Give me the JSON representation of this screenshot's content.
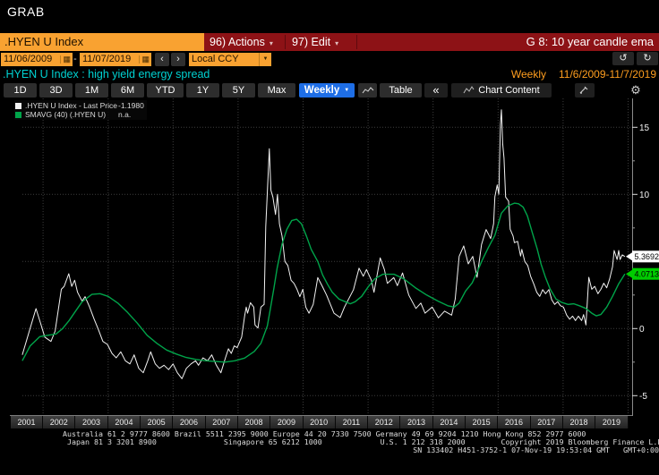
{
  "window": {
    "grab_label": "GRAB"
  },
  "topbar": {
    "ticker": ".HYEN U Index",
    "actions_label": "96) Actions",
    "edit_label": "97) Edit",
    "function_title": "G 8: 10 year candle ema"
  },
  "datebar": {
    "date_from": "11/06/2009",
    "separator": "-",
    "date_to": "11/07/2019",
    "currency": "Local CCY"
  },
  "titlebar": {
    "subtitle": ".HYEN U Index : high yield energy spread",
    "period_label": "Weekly",
    "range_label": "11/6/2009-11/7/2019"
  },
  "toolbar": {
    "ranges": [
      "1D",
      "3D",
      "1M",
      "6M",
      "YTD",
      "1Y",
      "5Y",
      "Max"
    ],
    "interval": "Weekly",
    "table_label": "Table",
    "collapse_label": "«",
    "chart_content_label": "Chart Content"
  },
  "icons": {
    "caret_down": "▼",
    "caret_down_small": "▾",
    "chevron_left": "‹",
    "chevron_right": "›",
    "undo": "↺",
    "redo": "↻",
    "gear": "⚙",
    "calendar": "▦"
  },
  "legend": {
    "items": [
      {
        "swatch": "#f2f2f2",
        "label": ".HYEN U Index - Last Price",
        "value": "-1.1980"
      },
      {
        "swatch": "#00a44a",
        "label": "SMAVG (40) (.HYEN U)",
        "value": "n.a."
      }
    ]
  },
  "chart_data": {
    "type": "line",
    "title": ".HYEN U Index : high yield energy spread",
    "interval": "Weekly",
    "date_range": "11/6/2009-11/7/2019",
    "x_axis_years": [
      2001,
      2002,
      2003,
      2004,
      2005,
      2006,
      2007,
      2008,
      2009,
      2010,
      2011,
      2012,
      2013,
      2014,
      2015,
      2016,
      2017,
      2018,
      2019
    ],
    "ylim": [
      -6.5,
      17.2
    ],
    "yticks": [
      15,
      10,
      5,
      0,
      -5
    ],
    "y_minor_ticks": [
      12.5,
      7.5,
      2.5,
      -2.5
    ],
    "grid": "dotted",
    "legend_position": "top-left",
    "last_price_labels": [
      {
        "series": ".HYEN U Index - Last Price",
        "value": 5.3692,
        "bg": "#ffffff"
      },
      {
        "series": "SMAVG (40) (.HYEN U)",
        "value": 4.0713,
        "bg": "#00cc00"
      }
    ],
    "series": [
      {
        "name": ".HYEN U Index - Last Price",
        "color": "#f2f2f2",
        "width": 1,
        "points": [
          [
            2001.36,
            -1.96
          ],
          [
            2001.55,
            -0.4
          ],
          [
            2001.78,
            1.49
          ],
          [
            2001.91,
            0.49
          ],
          [
            2002.05,
            -0.63
          ],
          [
            2002.24,
            -0.96
          ],
          [
            2002.37,
            -0.18
          ],
          [
            2002.56,
            2.93
          ],
          [
            2002.65,
            3.15
          ],
          [
            2002.79,
            4.09
          ],
          [
            2002.88,
            3.15
          ],
          [
            2002.97,
            3.6
          ],
          [
            2003.06,
            2.71
          ],
          [
            2003.2,
            2.04
          ],
          [
            2003.29,
            2.38
          ],
          [
            2003.43,
            1.6
          ],
          [
            2003.57,
            0.71
          ],
          [
            2003.7,
            -0.07
          ],
          [
            2003.84,
            -0.96
          ],
          [
            2003.98,
            -1.18
          ],
          [
            2004.12,
            -1.85
          ],
          [
            2004.25,
            -2.18
          ],
          [
            2004.39,
            -1.73
          ],
          [
            2004.53,
            -2.4
          ],
          [
            2004.67,
            -2.63
          ],
          [
            2004.8,
            -1.96
          ],
          [
            2004.94,
            -2.96
          ],
          [
            2005.08,
            -3.29
          ],
          [
            2005.22,
            -2.4
          ],
          [
            2005.31,
            -1.73
          ],
          [
            2005.45,
            -2.63
          ],
          [
            2005.58,
            -2.96
          ],
          [
            2005.72,
            -2.73
          ],
          [
            2005.86,
            -3.06
          ],
          [
            2006.0,
            -2.63
          ],
          [
            2006.13,
            -3.29
          ],
          [
            2006.27,
            -3.73
          ],
          [
            2006.41,
            -2.96
          ],
          [
            2006.55,
            -2.63
          ],
          [
            2006.69,
            -2.4
          ],
          [
            2006.78,
            -2.73
          ],
          [
            2006.92,
            -2.18
          ],
          [
            2007.06,
            -2.4
          ],
          [
            2007.19,
            -1.96
          ],
          [
            2007.33,
            -2.73
          ],
          [
            2007.47,
            -3.29
          ],
          [
            2007.61,
            -2.18
          ],
          [
            2007.7,
            -1.51
          ],
          [
            2007.79,
            -1.85
          ],
          [
            2007.88,
            -1.29
          ],
          [
            2007.97,
            -1.42
          ],
          [
            2008.11,
            -0.63
          ],
          [
            2008.2,
            0.93
          ],
          [
            2008.25,
            1.6
          ],
          [
            2008.29,
            1.15
          ],
          [
            2008.38,
            1.93
          ],
          [
            2008.48,
            1.6
          ],
          [
            2008.52,
            0.27
          ],
          [
            2008.61,
            0.04
          ],
          [
            2008.7,
            1.6
          ],
          [
            2008.8,
            1.8
          ],
          [
            2008.85,
            7.6
          ],
          [
            2008.96,
            13.4
          ],
          [
            2009.01,
            10.3
          ],
          [
            2009.07,
            9.8
          ],
          [
            2009.15,
            8.5
          ],
          [
            2009.21,
            10.0
          ],
          [
            2009.27,
            7.8
          ],
          [
            2009.35,
            6.9
          ],
          [
            2009.44,
            5.0
          ],
          [
            2009.53,
            4.7
          ],
          [
            2009.63,
            3.6
          ],
          [
            2009.72,
            3.37
          ],
          [
            2009.81,
            2.93
          ],
          [
            2009.9,
            2.38
          ],
          [
            2009.99,
            2.93
          ],
          [
            2010.08,
            1.6
          ],
          [
            2010.18,
            1.15
          ],
          [
            2010.31,
            1.8
          ],
          [
            2010.45,
            3.8
          ],
          [
            2010.59,
            3.15
          ],
          [
            2010.72,
            2.5
          ],
          [
            2010.95,
            1.15
          ],
          [
            2011.14,
            0.82
          ],
          [
            2011.27,
            1.6
          ],
          [
            2011.55,
            2.9
          ],
          [
            2011.72,
            4.5
          ],
          [
            2011.85,
            3.9
          ],
          [
            2011.95,
            4.4
          ],
          [
            2012.1,
            3.6
          ],
          [
            2012.18,
            2.7
          ],
          [
            2012.37,
            5.27
          ],
          [
            2012.5,
            4.4
          ],
          [
            2012.59,
            3.37
          ],
          [
            2012.79,
            3.8
          ],
          [
            2012.9,
            3.2
          ],
          [
            2013.06,
            4.15
          ],
          [
            2013.25,
            2.5
          ],
          [
            2013.47,
            1.5
          ],
          [
            2013.62,
            1.9
          ],
          [
            2013.75,
            1.15
          ],
          [
            2013.97,
            1.6
          ],
          [
            2014.16,
            0.8
          ],
          [
            2014.35,
            1.3
          ],
          [
            2014.57,
            1.0
          ],
          [
            2014.68,
            2.2
          ],
          [
            2014.8,
            5.38
          ],
          [
            2014.94,
            6.16
          ],
          [
            2015.08,
            4.82
          ],
          [
            2015.22,
            5.38
          ],
          [
            2015.35,
            3.82
          ],
          [
            2015.49,
            6.27
          ],
          [
            2015.63,
            7.38
          ],
          [
            2015.77,
            6.71
          ],
          [
            2015.86,
            7.82
          ],
          [
            2015.9,
            9.82
          ],
          [
            2015.97,
            10.7
          ],
          [
            2016.02,
            10.0
          ],
          [
            2016.07,
            15.2
          ],
          [
            2016.1,
            16.3
          ],
          [
            2016.14,
            13.8
          ],
          [
            2016.18,
            12.7
          ],
          [
            2016.23,
            9.8
          ],
          [
            2016.32,
            9.5
          ],
          [
            2016.37,
            7.4
          ],
          [
            2016.46,
            6.9
          ],
          [
            2016.5,
            6.4
          ],
          [
            2016.6,
            6.5
          ],
          [
            2016.69,
            5.4
          ],
          [
            2016.73,
            5.9
          ],
          [
            2016.82,
            5.0
          ],
          [
            2016.91,
            4.7
          ],
          [
            2017.0,
            3.9
          ],
          [
            2017.1,
            3.3
          ],
          [
            2017.19,
            2.7
          ],
          [
            2017.28,
            2.4
          ],
          [
            2017.37,
            2.9
          ],
          [
            2017.46,
            2.6
          ],
          [
            2017.56,
            2.9
          ],
          [
            2017.65,
            2.15
          ],
          [
            2017.74,
            1.8
          ],
          [
            2017.83,
            2.0
          ],
          [
            2017.92,
            1.7
          ],
          [
            2018.01,
            1.6
          ],
          [
            2018.11,
            1.0
          ],
          [
            2018.2,
            0.7
          ],
          [
            2018.29,
            0.93
          ],
          [
            2018.38,
            0.6
          ],
          [
            2018.47,
            0.93
          ],
          [
            2018.57,
            0.6
          ],
          [
            2018.63,
            1.04
          ],
          [
            2018.7,
            0.27
          ],
          [
            2018.79,
            3.82
          ],
          [
            2018.88,
            2.93
          ],
          [
            2018.97,
            3.15
          ],
          [
            2019.07,
            2.6
          ],
          [
            2019.16,
            2.93
          ],
          [
            2019.25,
            3.38
          ],
          [
            2019.34,
            3.04
          ],
          [
            2019.43,
            3.71
          ],
          [
            2019.52,
            4.6
          ],
          [
            2019.57,
            5.82
          ],
          [
            2019.66,
            5.15
          ],
          [
            2019.71,
            5.82
          ],
          [
            2019.75,
            5.15
          ],
          [
            2019.82,
            5.49
          ],
          [
            2019.9,
            5.37
          ]
        ]
      },
      {
        "name": "SMAVG (40) (.HYEN U)",
        "color": "#00a44a",
        "width": 1.4,
        "points": [
          [
            2001.36,
            -2.4
          ],
          [
            2001.6,
            -1.3
          ],
          [
            2001.9,
            -0.6
          ],
          [
            2002.15,
            -0.5
          ],
          [
            2002.4,
            -0.4
          ],
          [
            2002.6,
            0.0
          ],
          [
            2002.8,
            0.6
          ],
          [
            2003.0,
            1.3
          ],
          [
            2003.2,
            2.0
          ],
          [
            2003.5,
            2.55
          ],
          [
            2003.75,
            2.6
          ],
          [
            2004.0,
            2.4
          ],
          [
            2004.3,
            1.9
          ],
          [
            2004.6,
            1.2
          ],
          [
            2004.9,
            0.4
          ],
          [
            2005.2,
            -0.5
          ],
          [
            2005.5,
            -1.1
          ],
          [
            2005.8,
            -1.6
          ],
          [
            2006.1,
            -1.9
          ],
          [
            2006.4,
            -2.15
          ],
          [
            2006.7,
            -2.3
          ],
          [
            2007.0,
            -2.4
          ],
          [
            2007.3,
            -2.45
          ],
          [
            2007.6,
            -2.5
          ],
          [
            2007.9,
            -2.4
          ],
          [
            2008.2,
            -2.2
          ],
          [
            2008.5,
            -1.7
          ],
          [
            2008.7,
            -1.1
          ],
          [
            2008.9,
            0.2
          ],
          [
            2009.0,
            1.6
          ],
          [
            2009.1,
            3.0
          ],
          [
            2009.2,
            4.5
          ],
          [
            2009.35,
            6.3
          ],
          [
            2009.5,
            7.4
          ],
          [
            2009.65,
            8.05
          ],
          [
            2009.8,
            8.15
          ],
          [
            2009.95,
            7.8
          ],
          [
            2010.1,
            6.9
          ],
          [
            2010.25,
            5.9
          ],
          [
            2010.45,
            5.0
          ],
          [
            2010.6,
            4.0
          ],
          [
            2010.75,
            3.3
          ],
          [
            2010.9,
            2.7
          ],
          [
            2011.1,
            2.2
          ],
          [
            2011.3,
            2.0
          ],
          [
            2011.45,
            1.85
          ],
          [
            2011.6,
            2.0
          ],
          [
            2011.8,
            2.4
          ],
          [
            2012.0,
            3.1
          ],
          [
            2012.2,
            3.7
          ],
          [
            2012.45,
            4.05
          ],
          [
            2012.8,
            4.05
          ],
          [
            2013.1,
            3.7
          ],
          [
            2013.45,
            3.05
          ],
          [
            2013.8,
            2.5
          ],
          [
            2014.15,
            2.05
          ],
          [
            2014.45,
            1.7
          ],
          [
            2014.65,
            1.6
          ],
          [
            2014.8,
            1.9
          ],
          [
            2015.0,
            2.8
          ],
          [
            2015.2,
            3.4
          ],
          [
            2015.35,
            4.2
          ],
          [
            2015.5,
            5.05
          ],
          [
            2015.7,
            6.05
          ],
          [
            2015.9,
            6.95
          ],
          [
            2016.1,
            8.6
          ],
          [
            2016.3,
            9.15
          ],
          [
            2016.5,
            9.35
          ],
          [
            2016.63,
            9.3
          ],
          [
            2016.77,
            9.05
          ],
          [
            2016.9,
            8.4
          ],
          [
            2017.05,
            7.15
          ],
          [
            2017.2,
            5.95
          ],
          [
            2017.32,
            4.8
          ],
          [
            2017.46,
            3.8
          ],
          [
            2017.6,
            2.95
          ],
          [
            2017.78,
            2.2
          ],
          [
            2017.96,
            1.95
          ],
          [
            2018.15,
            1.8
          ],
          [
            2018.33,
            1.85
          ],
          [
            2018.5,
            1.7
          ],
          [
            2018.7,
            1.5
          ],
          [
            2018.88,
            1.15
          ],
          [
            2019.02,
            0.95
          ],
          [
            2019.16,
            1.05
          ],
          [
            2019.34,
            1.6
          ],
          [
            2019.52,
            2.4
          ],
          [
            2019.7,
            3.3
          ],
          [
            2019.9,
            4.07
          ]
        ]
      }
    ]
  },
  "footer": {
    "line1": "Australia 61 2 9777 8600 Brazil 5511 2395 9000 Europe 44 20 7330 7500 Germany 49 69 9204 1210 Hong Kong 852 2977 6000",
    "line2": " Japan 81 3 3201 8900               Singapore 65 6212 1000             U.S. 1 212 318 2000        Copyright 2019 Bloomberg Finance L.P.",
    "line3": "SN 133402 H451-3752-1 07-Nov-19 19:53:04 GMT   GMT+0:00"
  },
  "colors": {
    "accent_amber": "#f9a231",
    "bar_red": "#8d1216",
    "selected_blue": "#1e6ee6",
    "title_cyan": "#00d2d2",
    "period_amber": "#ff9e1f",
    "sma_green": "#00a44a",
    "price_white": "#f2f2f2",
    "grid_gray": "#3d3d3d",
    "tag_white_bg": "#ffffff",
    "tag_green_bg": "#00cc00"
  }
}
